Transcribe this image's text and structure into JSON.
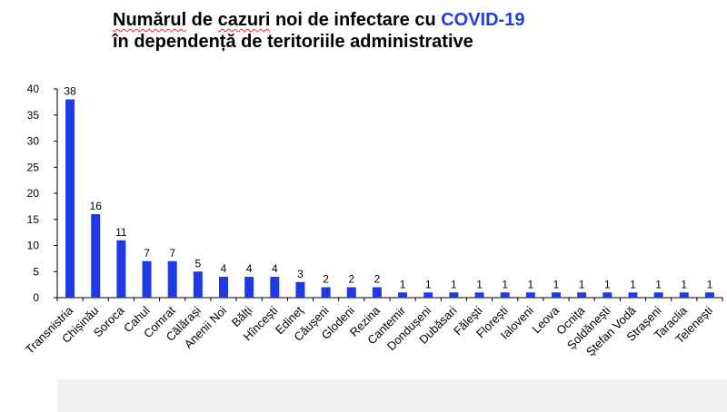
{
  "title": {
    "line1_part1": "Numărul",
    "line1_part2": " de ",
    "line1_part3": "cazuri",
    "line1_part4": " noi de infectare cu ",
    "line1_accent": "COVID-19",
    "line2": "în dependență de teritoriile administrative"
  },
  "colors": {
    "bar": "#2039e6",
    "title_accent": "#1f3fd6",
    "axis": "#000000"
  },
  "chart_data": {
    "type": "bar",
    "title": "Numărul de cazuri noi de infectare cu COVID-19 în dependență de teritoriile administrative",
    "xlabel": "",
    "ylabel": "",
    "ylim": [
      0,
      40
    ],
    "yticks": [
      0,
      5,
      10,
      15,
      20,
      25,
      30,
      35,
      40
    ],
    "grid": false,
    "legend": "none",
    "categories": [
      "Transnistria",
      "Chișinău",
      "Soroca",
      "Cahul",
      "Comrat",
      "Călărași",
      "Anenii Noi",
      "Bălți",
      "Hîncești",
      "Edineț",
      "Căușeni",
      "Glodeni",
      "Rezina",
      "Cantemir",
      "Dondușeni",
      "Dubăsari",
      "Fălești",
      "Florești",
      "Ialoveni",
      "Leova",
      "Ocnița",
      "Șoldănești",
      "Ștefan Vodă",
      "Strașeni",
      "Taraclia",
      "Telenești"
    ],
    "values": [
      38,
      16,
      11,
      7,
      7,
      5,
      4,
      4,
      4,
      3,
      2,
      2,
      2,
      1,
      1,
      1,
      1,
      1,
      1,
      1,
      1,
      1,
      1,
      1,
      1,
      1
    ]
  }
}
